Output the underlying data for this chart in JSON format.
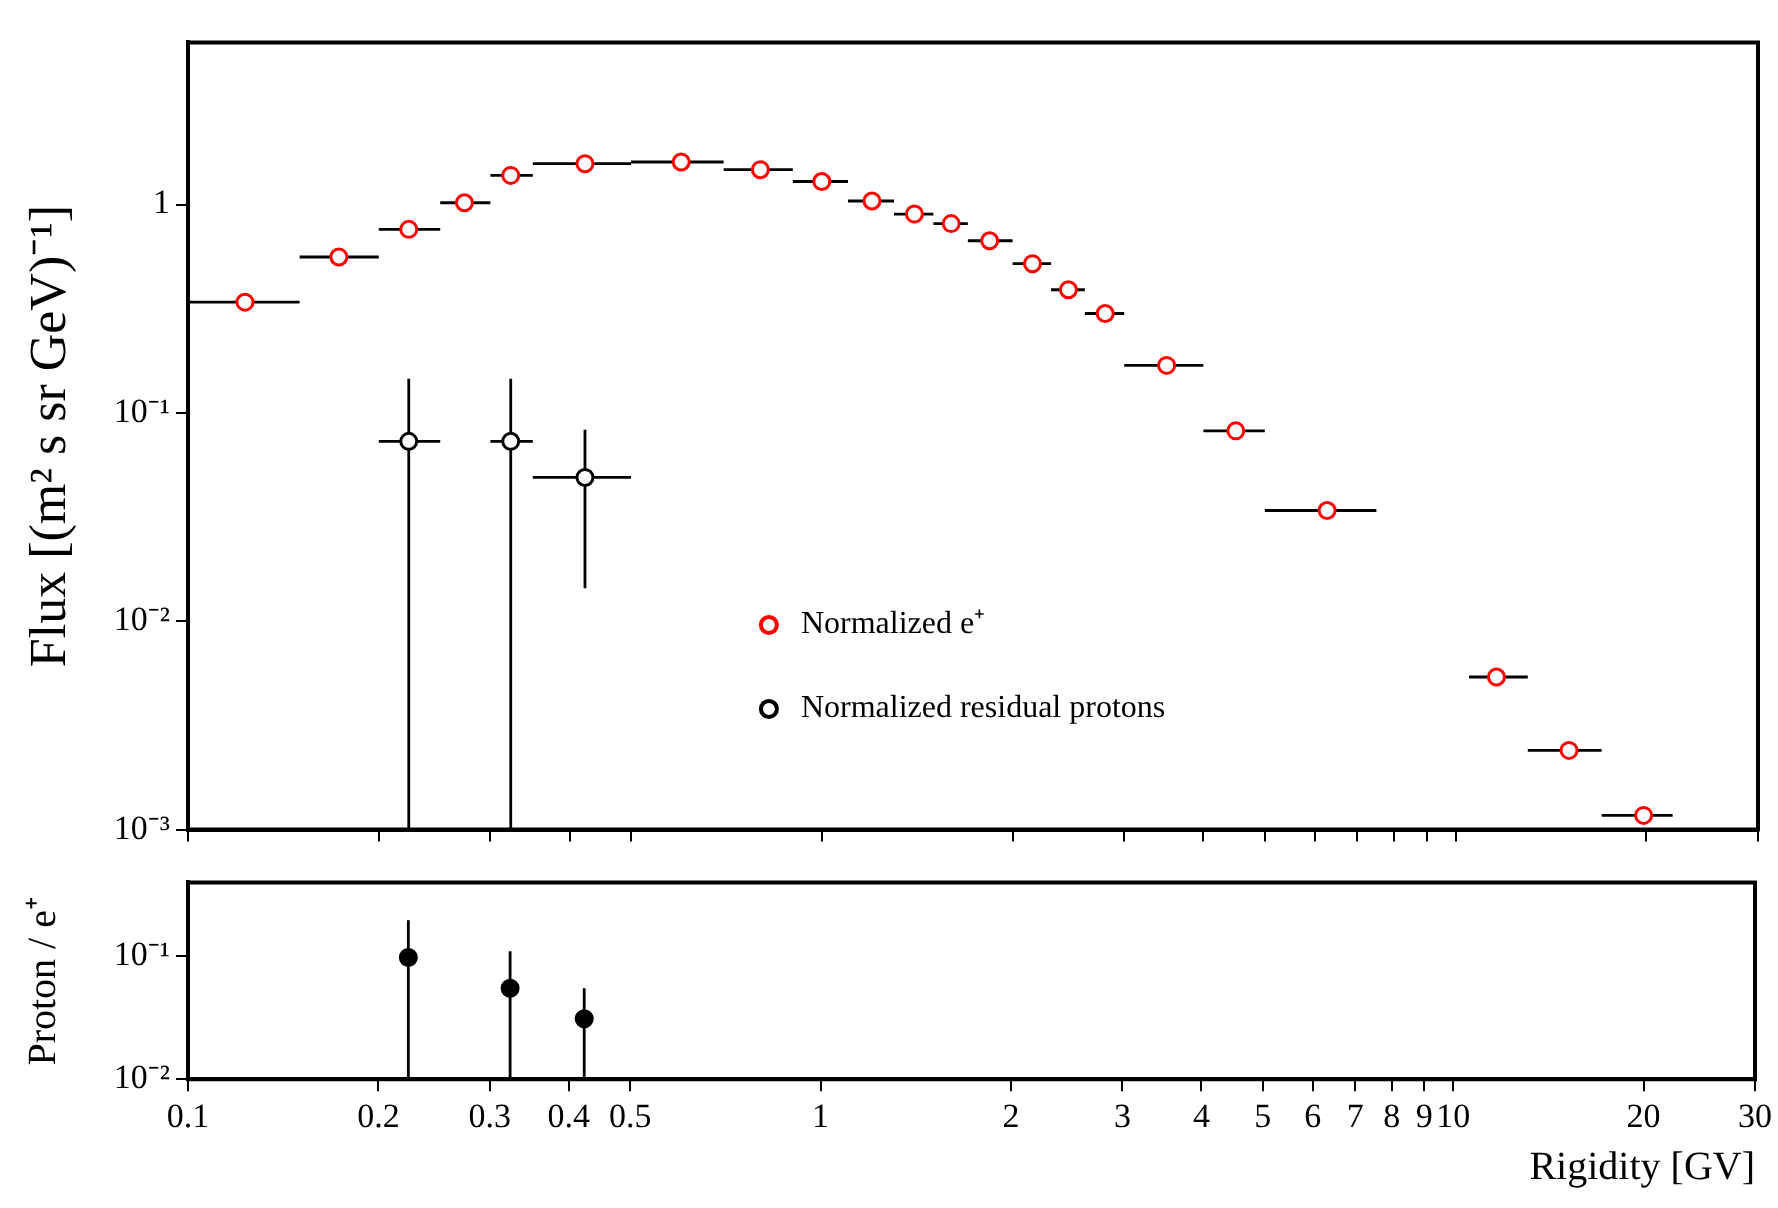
{
  "chart_data": [
    {
      "type": "scatter",
      "ylabel": "Flux [(m² s sr GeV)⁻¹]",
      "log": "xy",
      "xlim": [
        0.1,
        30
      ],
      "ylim": [
        0.001,
        6
      ],
      "xticks": [
        0.1,
        0.2,
        0.3,
        0.4,
        0.5,
        1,
        2,
        3,
        4,
        5,
        6,
        7,
        8,
        9,
        10,
        20,
        30
      ],
      "yticks": [
        {
          "value": 0.001,
          "label": "10⁻³"
        },
        {
          "value": 0.01,
          "label": "10⁻²"
        },
        {
          "value": 0.1,
          "label": "10⁻¹"
        },
        1
      ],
      "tick_labels": "y",
      "legend": "bottom",
      "marker": "circle",
      "series": [
        {
          "name": "Normalized e⁺",
          "color": "#ff0000",
          "x": [
            0.123,
            0.173,
            0.223,
            0.273,
            0.323,
            0.423,
            0.6,
            0.8,
            1.0,
            1.2,
            1.4,
            1.6,
            1.84,
            2.15,
            2.45,
            2.8,
            3.5,
            4.5,
            6.27,
            11.6,
            15.1,
            19.8
          ],
          "values": [
            0.34,
            0.56,
            0.76,
            1.02,
            1.38,
            1.57,
            1.6,
            1.47,
            1.29,
            1.04,
            0.9,
            0.81,
            0.67,
            0.52,
            0.39,
            0.3,
            0.169,
            0.082,
            0.034,
            0.0054,
            0.0024,
            0.00117
          ],
          "xerrors": [
            [
              0.1,
              0.15
            ],
            [
              0.15,
              0.2
            ],
            [
              0.2,
              0.25
            ],
            [
              0.25,
              0.3
            ],
            [
              0.3,
              0.35
            ],
            [
              0.35,
              0.5
            ],
            [
              0.5,
              0.7
            ],
            [
              0.7,
              0.9
            ],
            [
              0.9,
              1.1
            ],
            [
              1.1,
              1.3
            ],
            [
              1.3,
              1.5
            ],
            [
              1.5,
              1.7
            ],
            [
              1.7,
              2
            ],
            [
              2,
              2.3
            ],
            [
              2.3,
              2.6
            ],
            [
              2.6,
              3
            ],
            [
              3,
              4
            ],
            [
              4,
              5
            ],
            [
              5,
              7.5
            ],
            [
              10.5,
              13
            ],
            [
              13,
              17
            ],
            [
              17,
              22
            ]
          ]
        },
        {
          "name": "Normalized residual protons",
          "color": "#000000",
          "x": [
            0.223,
            0.323,
            0.423
          ],
          "values": [
            0.073,
            0.073,
            0.049
          ],
          "errors": [
            [
              0.001,
              0.146
            ],
            [
              0.001,
              0.146
            ],
            [
              0.0144,
              0.083
            ]
          ],
          "xerrors": [
            [
              0.2,
              0.25
            ],
            [
              0.3,
              0.35
            ],
            [
              0.35,
              0.5
            ]
          ]
        }
      ]
    },
    {
      "type": "scatter",
      "xlabel": "Rigidity [GV]",
      "ylabel": "Proton / e⁺",
      "log": "xy",
      "xlim": [
        0.1,
        30
      ],
      "ylim": [
        0.01,
        0.4
      ],
      "xticks": [
        0.1,
        0.2,
        0.3,
        0.4,
        0.5,
        1,
        2,
        3,
        4,
        5,
        6,
        7,
        8,
        9,
        10,
        20,
        30
      ],
      "yticks": [
        {
          "value": 0.01,
          "label": "10⁻²"
        },
        {
          "value": 0.1,
          "label": "10⁻¹"
        }
      ],
      "marker": "circle",
      "series": [
        {
          "color": "#000000",
          "x": [
            0.223,
            0.323,
            0.423
          ],
          "values": [
            0.098,
            0.055,
            0.031
          ],
          "errors": [
            [
              0.01,
              0.197
            ],
            [
              0.01,
              0.11
            ],
            [
              0.01,
              0.055
            ]
          ]
        }
      ]
    }
  ]
}
